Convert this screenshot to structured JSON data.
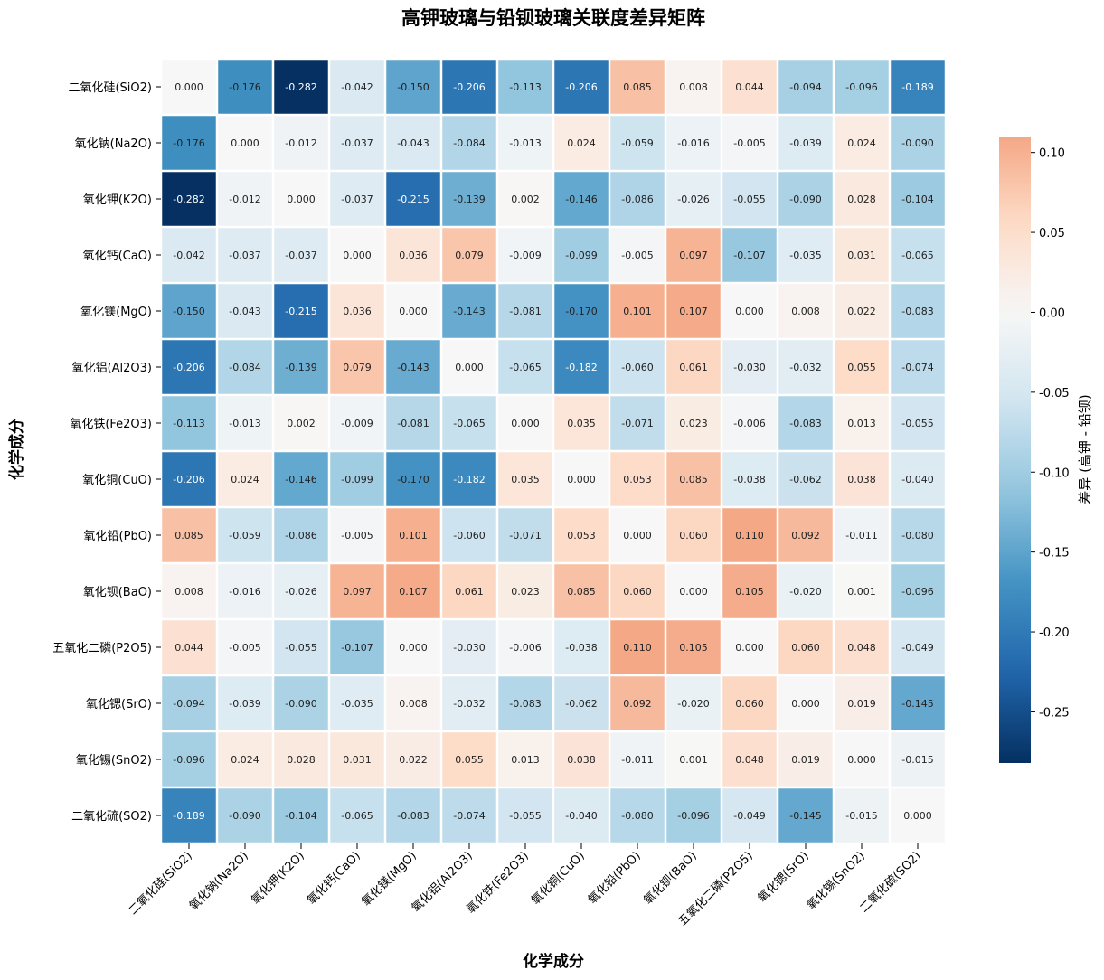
{
  "chart_data": {
    "type": "heatmap",
    "title": "高钾玻璃与铅钡玻璃关联度差异矩阵",
    "xlabel": "化学成分",
    "ylabel": "化学成分",
    "categories": [
      "二氧化硅(SiO2)",
      "氧化钠(Na2O)",
      "氧化钾(K2O)",
      "氧化钙(CaO)",
      "氧化镁(MgO)",
      "氧化铝(Al2O3)",
      "氧化铁(Fe2O3)",
      "氧化铜(CuO)",
      "氧化铅(PbO)",
      "氧化钡(BaO)",
      "五氧化二磷(P2O5)",
      "氧化锶(SrO)",
      "氧化锡(SnO2)",
      "二氧化硫(SO2)"
    ],
    "values": [
      [
        0.0,
        -0.176,
        -0.282,
        -0.042,
        -0.15,
        -0.206,
        -0.113,
        -0.206,
        0.085,
        0.008,
        0.044,
        -0.094,
        -0.096,
        -0.189
      ],
      [
        -0.176,
        0.0,
        -0.012,
        -0.037,
        -0.043,
        -0.084,
        -0.013,
        0.024,
        -0.059,
        -0.016,
        -0.005,
        -0.039,
        0.024,
        -0.09
      ],
      [
        -0.282,
        -0.012,
        0.0,
        -0.037,
        -0.215,
        -0.139,
        0.002,
        -0.146,
        -0.086,
        -0.026,
        -0.055,
        -0.09,
        0.028,
        -0.104
      ],
      [
        -0.042,
        -0.037,
        -0.037,
        0.0,
        0.036,
        0.079,
        -0.009,
        -0.099,
        -0.005,
        0.097,
        -0.107,
        -0.035,
        0.031,
        -0.065
      ],
      [
        -0.15,
        -0.043,
        -0.215,
        0.036,
        0.0,
        -0.143,
        -0.081,
        -0.17,
        0.101,
        0.107,
        0.0,
        0.008,
        0.022,
        -0.083
      ],
      [
        -0.206,
        -0.084,
        -0.139,
        0.079,
        -0.143,
        0.0,
        -0.065,
        -0.182,
        -0.06,
        0.061,
        -0.03,
        -0.032,
        0.055,
        -0.074
      ],
      [
        -0.113,
        -0.013,
        0.002,
        -0.009,
        -0.081,
        -0.065,
        0.0,
        0.035,
        -0.071,
        0.023,
        -0.006,
        -0.083,
        0.013,
        -0.055
      ],
      [
        -0.206,
        0.024,
        -0.146,
        -0.099,
        -0.17,
        -0.182,
        0.035,
        0.0,
        0.053,
        0.085,
        -0.038,
        -0.062,
        0.038,
        -0.04
      ],
      [
        0.085,
        -0.059,
        -0.086,
        -0.005,
        0.101,
        -0.06,
        -0.071,
        0.053,
        0.0,
        0.06,
        0.11,
        0.092,
        -0.011,
        -0.08
      ],
      [
        0.008,
        -0.016,
        -0.026,
        0.097,
        0.107,
        0.061,
        0.023,
        0.085,
        0.06,
        0.0,
        0.105,
        -0.02,
        0.001,
        -0.096
      ],
      [
        0.044,
        -0.005,
        -0.055,
        -0.107,
        0.0,
        -0.03,
        -0.006,
        -0.038,
        0.11,
        0.105,
        0.0,
        0.06,
        0.048,
        -0.049
      ],
      [
        -0.094,
        -0.039,
        -0.09,
        -0.035,
        0.008,
        -0.032,
        -0.083,
        -0.062,
        0.092,
        -0.02,
        0.06,
        0.0,
        0.019,
        -0.145
      ],
      [
        -0.096,
        0.024,
        0.028,
        0.031,
        0.022,
        0.055,
        0.013,
        0.038,
        -0.011,
        0.001,
        0.048,
        0.019,
        0.0,
        -0.015
      ],
      [
        -0.189,
        -0.09,
        -0.104,
        -0.065,
        -0.083,
        -0.074,
        -0.055,
        -0.04,
        -0.08,
        -0.096,
        -0.049,
        -0.145,
        -0.015,
        0.0
      ]
    ],
    "colorbar": {
      "label": "差异 (高钾 - 铅钡)",
      "range": [
        -0.282,
        0.11
      ],
      "ticks": [
        0.1,
        0.05,
        0.0,
        -0.05,
        -0.1,
        -0.15,
        -0.2,
        -0.25
      ],
      "tick_labels": [
        "0.10",
        "0.05",
        "0.00",
        "-0.05",
        "-0.10",
        "-0.15",
        "-0.20",
        "-0.25"
      ]
    },
    "colormap": "RdBu_r",
    "colormap_stops": [
      "#053061",
      "#2166ac",
      "#4393c3",
      "#92c5de",
      "#d1e5f0",
      "#f7f7f7",
      "#fddbc7",
      "#f4a582",
      "#d6604d",
      "#b2182b",
      "#67001f"
    ]
  }
}
